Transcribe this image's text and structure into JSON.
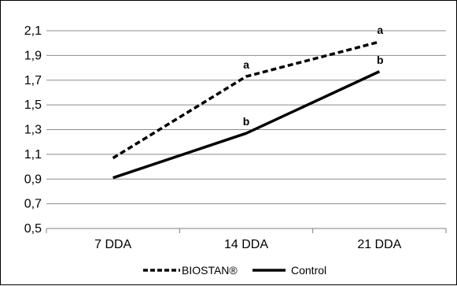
{
  "chart_data": {
    "type": "line",
    "categories": [
      "7 DDA",
      "14 DDA",
      "21 DDA"
    ],
    "ylim": [
      0.5,
      2.1
    ],
    "yticks": [
      "0,5",
      "0,7",
      "0,9",
      "1,1",
      "1,3",
      "1,5",
      "1,7",
      "1,9",
      "2,1"
    ],
    "grid": true,
    "legend_position": "bottom",
    "series": [
      {
        "name": "BIOSTAN®",
        "values": [
          1.07,
          1.73,
          2.01
        ],
        "style": "dashed",
        "color": "#000000",
        "point_labels": [
          "",
          "a",
          "a"
        ]
      },
      {
        "name": "Control",
        "values": [
          0.91,
          1.27,
          1.77
        ],
        "style": "solid",
        "color": "#000000",
        "point_labels": [
          "",
          "b",
          "b"
        ]
      }
    ]
  }
}
